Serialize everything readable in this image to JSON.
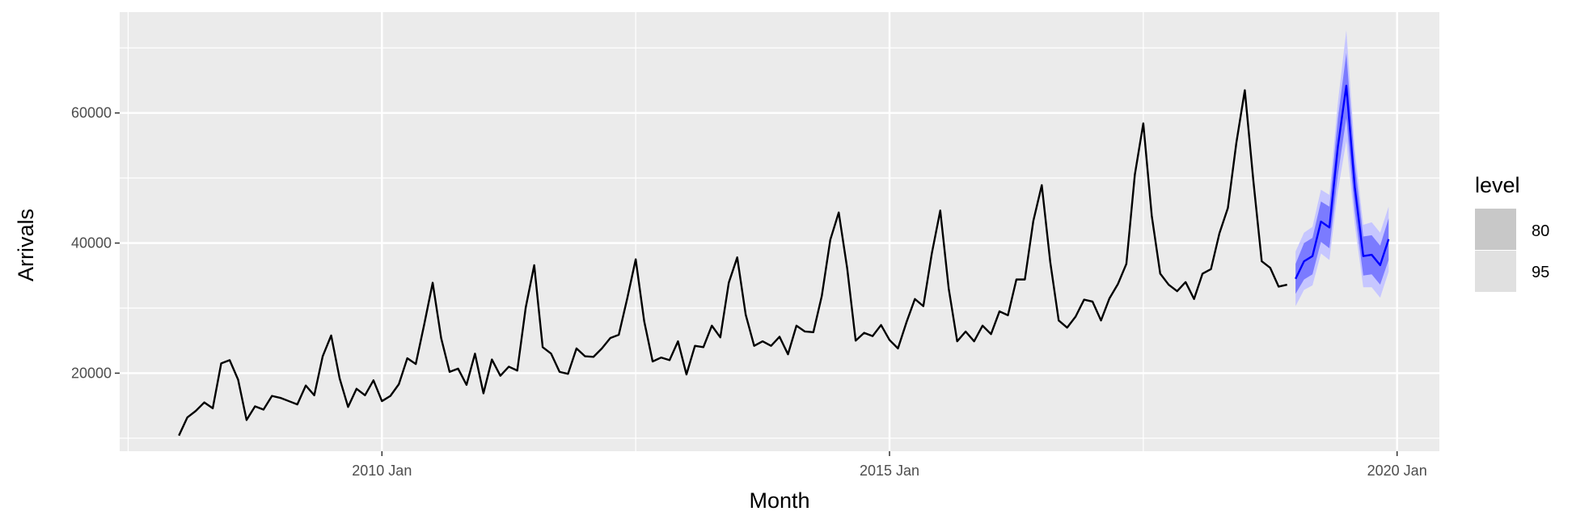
{
  "chart_data": {
    "type": "line",
    "xlabel": "Month",
    "ylabel": "Arrivals",
    "x_start": "2008-01",
    "x_ticks": [
      {
        "label": "2010 Jan",
        "month": "2010-01"
      },
      {
        "label": "2015 Jan",
        "month": "2015-01"
      },
      {
        "label": "2020 Jan",
        "month": "2020-01"
      }
    ],
    "xlim": [
      "2007-06",
      "2020-06"
    ],
    "y_ticks": [
      20000,
      40000,
      60000
    ],
    "ylim": [
      8000,
      75500
    ],
    "grid": true,
    "series": [
      {
        "values": [
          10400,
          13200,
          14200,
          15500,
          14600,
          21500,
          22000,
          19000,
          12800,
          14900,
          14400,
          16500,
          16200,
          15700,
          15200,
          18100,
          16600,
          22600,
          25800,
          19200,
          14800,
          17600,
          16600,
          18900,
          15700,
          16500,
          18300,
          22300,
          21400,
          27500,
          33900,
          25400,
          20200,
          20700,
          18200,
          23000,
          16900,
          22100,
          19600,
          21000,
          20400,
          30100,
          36600,
          24000,
          23000,
          20200,
          19900,
          23800,
          22600,
          22500,
          23800,
          25400,
          25900,
          31500,
          37500,
          28000,
          21800,
          22400,
          22000,
          24900,
          19800,
          24200,
          24000,
          27300,
          25500,
          33900,
          37800,
          29000,
          24200,
          24900,
          24200,
          25600,
          22900,
          27300,
          26400,
          26300,
          31900,
          40500,
          44700,
          36100,
          25000,
          26200,
          25700,
          27400,
          25100,
          23800,
          27800,
          31400,
          30300,
          38400,
          45000,
          33000,
          24900,
          26400,
          24900,
          27300,
          26000,
          29500,
          28900,
          34400,
          34400,
          43400,
          48900,
          37100,
          28100,
          27000,
          28700,
          31300,
          31000,
          28100,
          31500,
          33700,
          36800,
          50500,
          58400,
          44200,
          35300,
          33600,
          32600,
          34000,
          31400,
          35300,
          36000,
          41500,
          45400,
          55400,
          63500,
          49700,
          37200,
          36200,
          33300,
          33600
        ]
      }
    ],
    "forecast": {
      "values": [
        34500,
        37200,
        38000,
        43300,
        42400,
        54800,
        64200,
        48600,
        38000,
        38200,
        36600,
        40600
      ],
      "levels": {
        "80": {
          "lower": [
            32200,
            34400,
            35200,
            40200,
            39200,
            50500,
            59200,
            44900,
            35000,
            35200,
            33600,
            37400
          ],
          "upper": [
            36800,
            40000,
            40800,
            46400,
            45600,
            59100,
            69200,
            52300,
            41000,
            41200,
            39600,
            43800
          ]
        },
        "95": {
          "lower": [
            30300,
            32800,
            33500,
            38400,
            37400,
            48000,
            55700,
            42800,
            33200,
            33200,
            31600,
            35600
          ],
          "upper": [
            38700,
            41600,
            42500,
            48200,
            47400,
            61600,
            72700,
            54400,
            42800,
            43200,
            41600,
            45600
          ]
        }
      }
    },
    "legend": {
      "title": "level",
      "position": "right",
      "entries": [
        {
          "label": "80",
          "color": "#c8c8c8"
        },
        {
          "label": "95",
          "color": "#e0e0e0"
        }
      ]
    },
    "colors": {
      "panel": "#ebebeb",
      "grid": "#ffffff",
      "history_line": "#000000",
      "forecast_line": "#0000ff",
      "band80": "#7b7bff",
      "band95": "#c6c6ff"
    }
  }
}
